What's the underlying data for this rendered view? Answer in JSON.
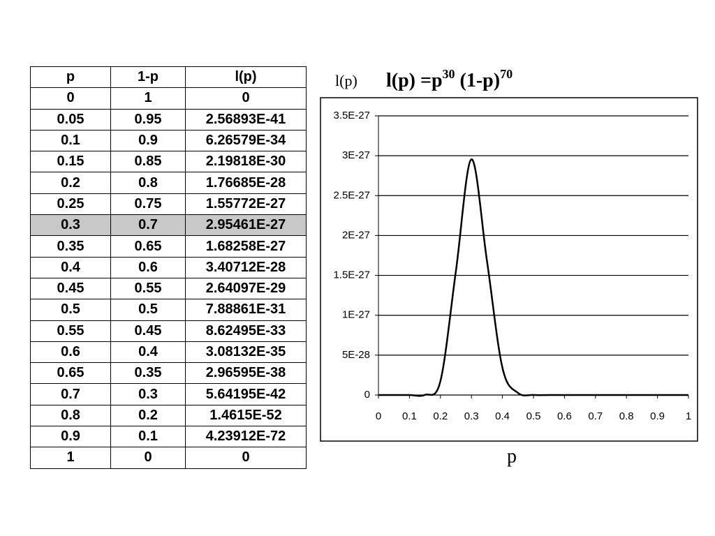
{
  "table": {
    "header": [
      "p",
      "1-p",
      "l(p)"
    ],
    "rows": [
      [
        "0",
        "1",
        "0"
      ],
      [
        "0.05",
        "0.95",
        "2.56893E-41"
      ],
      [
        "0.1",
        "0.9",
        "6.26579E-34"
      ],
      [
        "0.15",
        "0.85",
        "2.19818E-30"
      ],
      [
        "0.2",
        "0.8",
        "1.76685E-28"
      ],
      [
        "0.25",
        "0.75",
        "1.55772E-27"
      ],
      [
        "0.3",
        "0.7",
        "2.95461E-27"
      ],
      [
        "0.35",
        "0.65",
        "1.68258E-27"
      ],
      [
        "0.4",
        "0.6",
        "3.40712E-28"
      ],
      [
        "0.45",
        "0.55",
        "2.64097E-29"
      ],
      [
        "0.5",
        "0.5",
        "7.88861E-31"
      ],
      [
        "0.55",
        "0.45",
        "8.62495E-33"
      ],
      [
        "0.6",
        "0.4",
        "3.08132E-35"
      ],
      [
        "0.65",
        "0.35",
        "2.96595E-38"
      ],
      [
        "0.7",
        "0.3",
        "5.64195E-42"
      ],
      [
        "0.8",
        "0.2",
        "1.4615E-52"
      ],
      [
        "0.9",
        "0.1",
        "4.23912E-72"
      ],
      [
        "1",
        "0",
        "0"
      ]
    ],
    "highlight_row": 6,
    "highlight_color": "#c8c8c8"
  },
  "chart_data": {
    "type": "line",
    "title": [
      "l(p) =p",
      "30",
      " (1-p)",
      "70"
    ],
    "y_label": "l(p)",
    "x_label": "p",
    "x": [
      0,
      0.05,
      0.1,
      0.15,
      0.2,
      0.25,
      0.3,
      0.35,
      0.4,
      0.45,
      0.5,
      0.55,
      0.6,
      0.65,
      0.7,
      0.8,
      0.9,
      1
    ],
    "values": [
      0,
      2.56893e-41,
      6.26579e-34,
      2.19818e-30,
      1.76685e-28,
      1.55772e-27,
      2.95461e-27,
      1.68258e-27,
      3.40712e-28,
      2.64097e-29,
      7.88861e-31,
      8.62495e-33,
      3.08132e-35,
      2.96595e-38,
      5.64195e-42,
      1.4615e-52,
      4.23912e-72,
      0
    ],
    "color": "#000000",
    "xlim": [
      0,
      1
    ],
    "xticks": [
      0,
      0.1,
      0.2,
      0.3,
      0.4,
      0.5,
      0.6,
      0.7,
      0.8,
      0.9,
      1
    ],
    "ylim": [
      0,
      3.5e-27
    ],
    "yticks": [
      0,
      {
        "value": 5e-28,
        "label": "5E-28"
      },
      {
        "value": 1e-27,
        "label": "1E-27"
      },
      {
        "value": 1.5e-27,
        "label": "1.5E-27"
      },
      {
        "value": 2e-27,
        "label": "2E-27"
      },
      {
        "value": 2.5e-27,
        "label": "2.5E-27"
      },
      {
        "value": 3e-27,
        "label": "3E-27"
      },
      {
        "value": 3.5e-27,
        "label": "3.5E-27"
      }
    ],
    "grid": true
  }
}
